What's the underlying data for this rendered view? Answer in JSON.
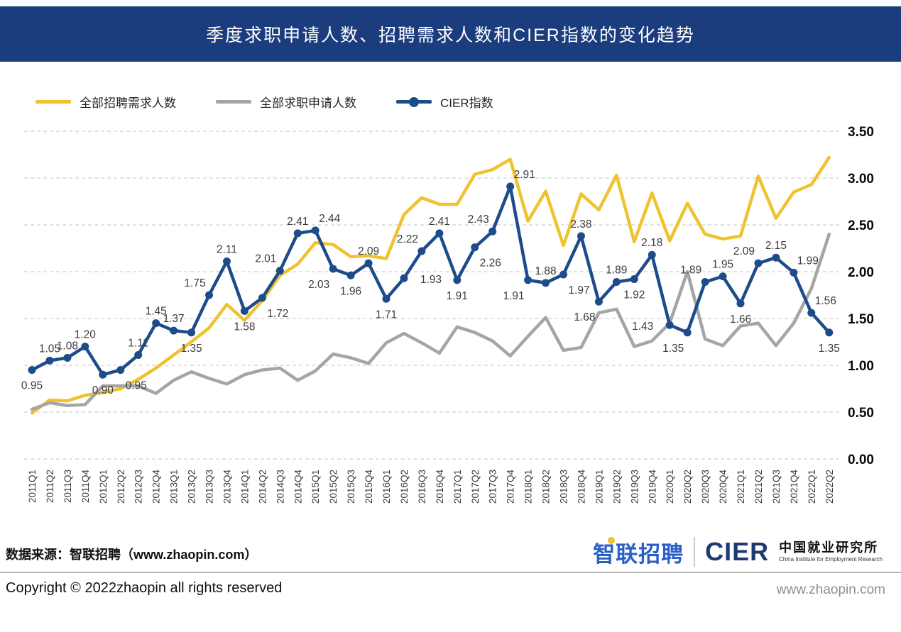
{
  "title": "季度求职申请人数、招聘需求人数和CIER指数的变化趋势",
  "colors": {
    "header_bg": "#1B3C7D",
    "demand": "#EFC230",
    "supply": "#A5A5A5",
    "cier": "#1E4C8A",
    "grid": "#D8D8D8",
    "value_label": "#3D3D3D",
    "axis_label": "#3B3B3B",
    "ytick_label": "#0A0A0A"
  },
  "legend": [
    {
      "label": "全部招聘需求人数",
      "color": "#EFC230",
      "type": "line"
    },
    {
      "label": "全部求职申请人数",
      "color": "#A5A5A5",
      "type": "line"
    },
    {
      "label": "CIER指数",
      "color": "#1E4C8A",
      "type": "line-dot"
    }
  ],
  "chart_data": {
    "type": "line",
    "title": "季度求职申请人数、招聘需求人数和CIER指数的变化趋势",
    "x": [
      "2011Q1",
      "2011Q2",
      "2011Q3",
      "2011Q4",
      "2012Q1",
      "2012Q2",
      "2012Q3",
      "2012Q4",
      "2013Q1",
      "2013Q2",
      "2013Q3",
      "2013Q4",
      "2014Q1",
      "2014Q2",
      "2014Q3",
      "2014Q4",
      "2015Q1",
      "2015Q2",
      "2015Q3",
      "2015Q4",
      "2016Q1",
      "2016Q2",
      "2016Q3",
      "2016Q4",
      "2017Q1",
      "2017Q2",
      "2017Q3",
      "2017Q4",
      "2018Q1",
      "2018Q2",
      "2018Q3",
      "2018Q4",
      "2019Q1",
      "2019Q2",
      "2019Q3",
      "2019Q4",
      "2020Q1",
      "2020Q2",
      "2020Q3",
      "2020Q4",
      "2021Q1",
      "2021Q2",
      "2021Q3",
      "2021Q4",
      "2022Q1",
      "2022Q2"
    ],
    "ylim": [
      0,
      3.5
    ],
    "yticks": [
      3.5,
      3.0,
      2.5,
      2.0,
      1.5,
      1.0,
      0.5,
      0.0
    ],
    "grid": "horizontal-dashed",
    "legend_position": "top-left",
    "series": [
      {
        "name": "全部招聘需求人数",
        "color": "#EFC230",
        "markers": false,
        "data_labels": false,
        "values": [
          0.49,
          0.63,
          0.62,
          0.68,
          0.71,
          0.75,
          0.85,
          0.97,
          1.11,
          1.25,
          1.4,
          1.65,
          1.48,
          1.69,
          1.96,
          2.08,
          2.31,
          2.29,
          2.16,
          2.17,
          2.14,
          2.61,
          2.79,
          2.72,
          2.72,
          3.04,
          3.09,
          3.2,
          2.54,
          2.86,
          2.28,
          2.83,
          2.66,
          3.03,
          2.32,
          2.84,
          2.33,
          2.73,
          2.4,
          2.35,
          2.38,
          3.02,
          2.57,
          2.85,
          2.93,
          3.22
        ]
      },
      {
        "name": "全部求职申请人数",
        "color": "#A5A5A5",
        "markers": false,
        "data_labels": false,
        "values": [
          0.53,
          0.6,
          0.57,
          0.58,
          0.78,
          0.78,
          0.78,
          0.7,
          0.84,
          0.93,
          0.86,
          0.8,
          0.9,
          0.95,
          0.97,
          0.84,
          0.94,
          1.12,
          1.08,
          1.02,
          1.24,
          1.34,
          1.24,
          1.13,
          1.41,
          1.35,
          1.26,
          1.1,
          1.31,
          1.51,
          1.16,
          1.19,
          1.56,
          1.6,
          1.2,
          1.26,
          1.45,
          2.0,
          1.28,
          1.21,
          1.42,
          1.45,
          1.21,
          1.45,
          1.82,
          2.4
        ]
      },
      {
        "name": "CIER指数",
        "color": "#1E4C8A",
        "markers": true,
        "data_labels": true,
        "values": [
          0.95,
          1.05,
          1.08,
          1.2,
          0.9,
          0.95,
          1.11,
          1.45,
          1.37,
          1.35,
          1.75,
          2.11,
          1.58,
          1.72,
          2.01,
          2.41,
          2.44,
          2.03,
          1.96,
          2.09,
          1.71,
          1.93,
          2.22,
          2.41,
          1.91,
          2.26,
          2.43,
          2.91,
          1.91,
          1.88,
          1.97,
          2.38,
          1.68,
          1.89,
          1.92,
          2.18,
          1.43,
          1.35,
          1.89,
          1.95,
          1.66,
          2.09,
          2.15,
          1.99,
          1.56,
          1.35
        ],
        "label_pos": [
          "b",
          "a",
          "a",
          "a",
          "b",
          "br",
          "a",
          "a",
          "a",
          "b",
          "al",
          "a",
          "b",
          "br",
          "al",
          "a",
          "ar",
          "bl",
          "b",
          "a",
          "b",
          "r",
          "al",
          "a",
          "b",
          "br",
          "al",
          "ar",
          "bl",
          "a",
          "br",
          "a",
          "bl",
          "a",
          "b",
          "a",
          "l",
          "bl",
          "al",
          "a",
          "b",
          "al",
          "a",
          "ar",
          "ar",
          "b"
        ]
      }
    ]
  },
  "footer": {
    "source": "数据来源：智联招聘（www.zhaopin.com）",
    "zhaopin_logo": "智联招聘",
    "cier_logo": "CIER",
    "cier_cn": "中国就业研究所",
    "cier_en": "China Institute for Employment Research",
    "copyright": "Copyright ©  2022zhaopin all rights reserved",
    "website": "www.zhaopin.com"
  }
}
